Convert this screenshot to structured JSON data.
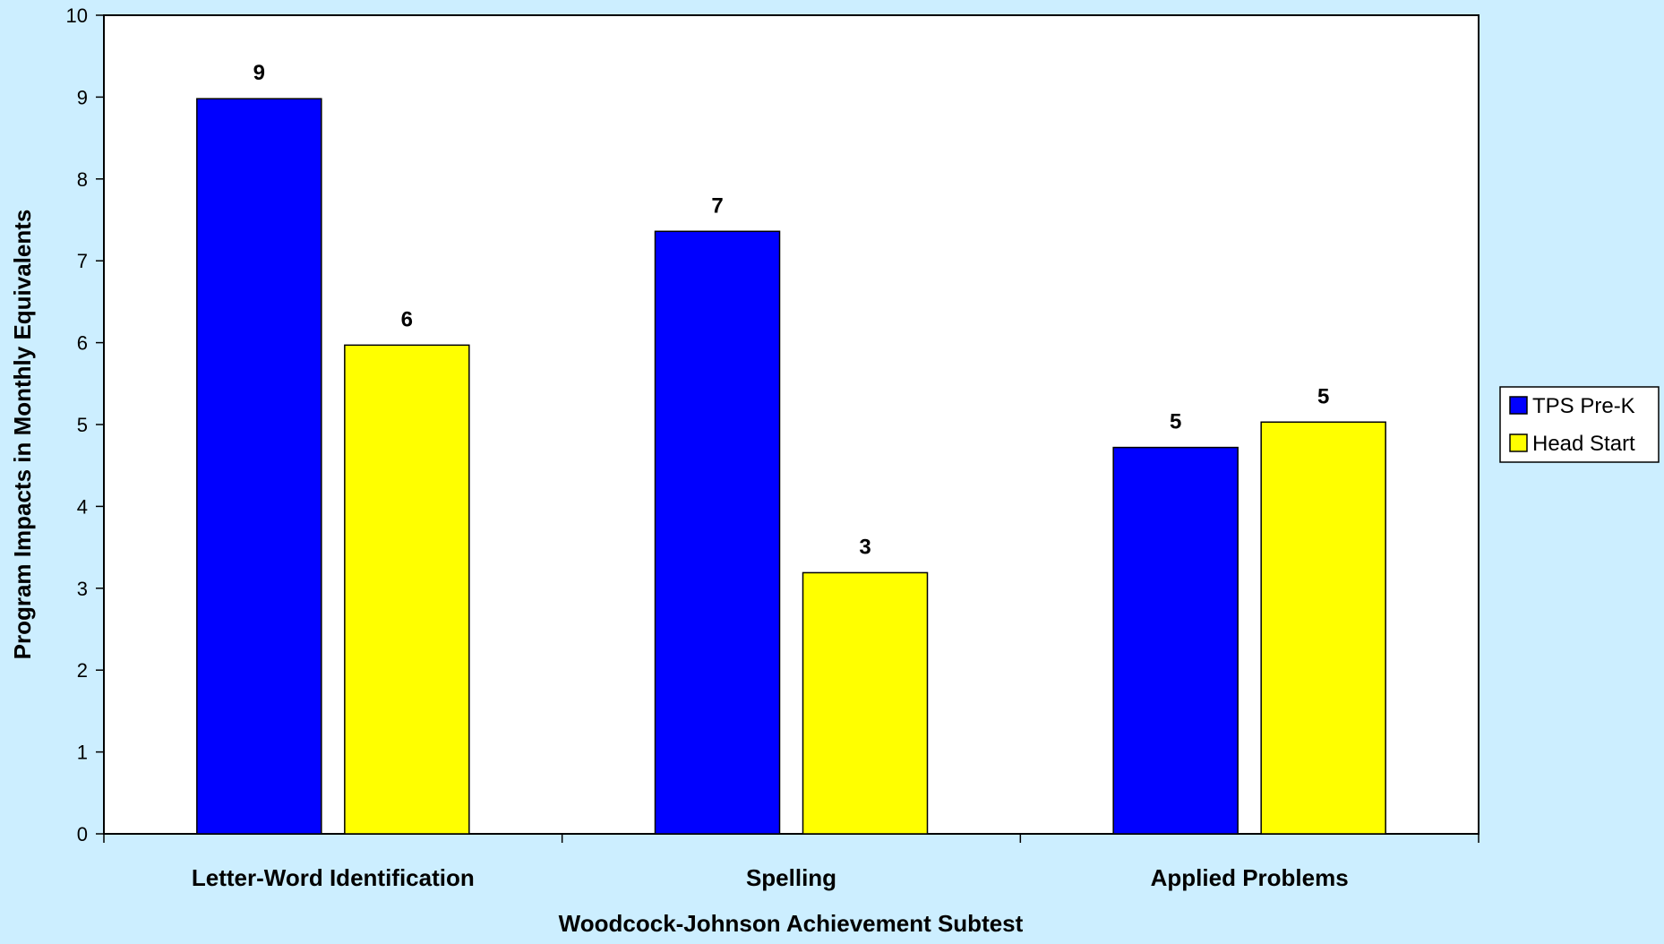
{
  "chart_data": {
    "type": "bar",
    "title": "",
    "xlabel": "Woodcock-Johnson Achievement Subtest",
    "ylabel": "Program Impacts in Monthly Equivalents",
    "categories": [
      "Letter-Word Identification",
      "Spelling",
      "Applied Problems"
    ],
    "series": [
      {
        "name": "TPS Pre-K",
        "color": "#0000ff",
        "values": [
          8.98,
          7.36,
          4.72
        ],
        "labels": [
          "9",
          "7",
          "5"
        ]
      },
      {
        "name": "Head Start",
        "color": "#ffff00",
        "values": [
          5.97,
          3.19,
          5.03
        ],
        "labels": [
          "6",
          "3",
          "5"
        ]
      }
    ],
    "ylim": [
      0,
      10
    ],
    "yticks": [
      "0",
      "1",
      "2",
      "3",
      "4",
      "5",
      "6",
      "7",
      "8",
      "9",
      "10"
    ],
    "grid": false,
    "legend_position": "right",
    "plot_background": "#ffffff",
    "page_background": "#cceeff"
  }
}
